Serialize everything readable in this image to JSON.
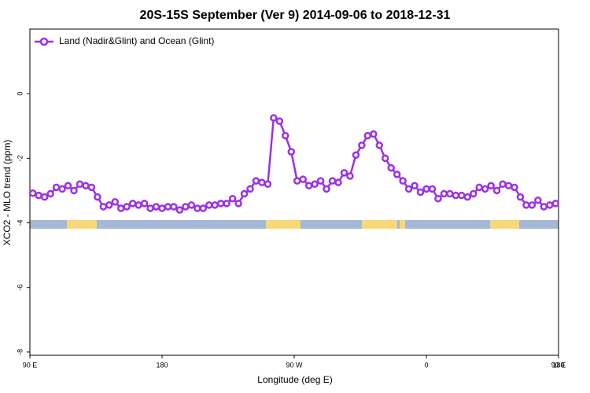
{
  "chart_data": {
    "type": "line",
    "title": "20S-15S September (Ver 9)   2014-09-06 to 2018-12-31",
    "xlabel": "Longitude (deg E)",
    "ylabel": "XCO2 - MLO trend (ppm)",
    "xlim": [
      90,
      450
    ],
    "ylim": [
      -8.1,
      2.0
    ],
    "xticks": [
      {
        "value": 90,
        "label": "90 E"
      },
      180,
      {
        "value": 270,
        "label": "90 W"
      },
      {
        "value": 360,
        "label": "0"
      },
      {
        "value": 450,
        "label": "90 E"
      },
      {
        "value": 540,
        "label": "180"
      }
    ],
    "yticks": [
      0,
      -2,
      -4,
      -6,
      -8
    ],
    "legend": "upper left",
    "x": [
      92,
      96,
      100,
      104,
      108,
      112,
      116,
      120,
      124,
      128,
      132,
      136,
      140,
      144,
      148,
      152,
      156,
      160,
      164,
      168,
      172,
      176,
      180,
      184,
      188,
      192,
      196,
      200,
      204,
      208,
      212,
      216,
      220,
      224,
      228,
      232,
      236,
      240,
      244,
      248,
      252,
      256,
      260,
      264,
      268,
      272,
      276,
      280,
      284,
      288,
      292,
      296,
      300,
      304,
      308,
      312,
      316,
      320,
      324,
      328,
      332,
      336,
      340,
      344,
      348,
      352,
      356,
      360,
      364,
      368,
      372,
      376,
      380,
      384,
      388,
      392,
      396,
      400,
      404,
      408,
      412,
      416,
      420,
      424,
      428,
      432,
      436,
      440,
      444,
      448
    ],
    "series": [
      {
        "name": "Land (Nadir&Glint) and Ocean (Glint)",
        "color": "#9b30e8",
        "values": [
          -3.08,
          -3.15,
          -3.2,
          -3.1,
          -2.9,
          -2.95,
          -2.85,
          -3.0,
          -2.8,
          -2.85,
          -2.9,
          -3.2,
          -3.5,
          -3.45,
          -3.35,
          -3.55,
          -3.5,
          -3.4,
          -3.45,
          -3.4,
          -3.55,
          -3.5,
          -3.55,
          -3.5,
          -3.5,
          -3.6,
          -3.5,
          -3.45,
          -3.55,
          -3.55,
          -3.45,
          -3.45,
          -3.4,
          -3.4,
          -3.25,
          -3.4,
          -3.1,
          -2.95,
          -2.7,
          -2.75,
          -2.8,
          -0.75,
          -0.85,
          -1.3,
          -1.8,
          -2.7,
          -2.65,
          -2.85,
          -2.8,
          -2.7,
          -2.95,
          -2.7,
          -2.75,
          -2.45,
          -2.55,
          -1.9,
          -1.6,
          -1.3,
          -1.25,
          -1.6,
          -2.0,
          -2.3,
          -2.5,
          -2.7,
          -2.95,
          -2.85,
          -3.05,
          -2.95,
          -2.95,
          -3.25,
          -3.1,
          -3.1,
          -3.15,
          -3.15,
          -3.2,
          -3.1,
          -2.9,
          -2.95,
          -2.85,
          -3.0,
          -2.8,
          -2.85,
          -2.9,
          -3.2,
          -3.45,
          -3.45,
          -3.3,
          -3.5,
          -3.45,
          -3.4
        ]
      }
    ]
  }
}
